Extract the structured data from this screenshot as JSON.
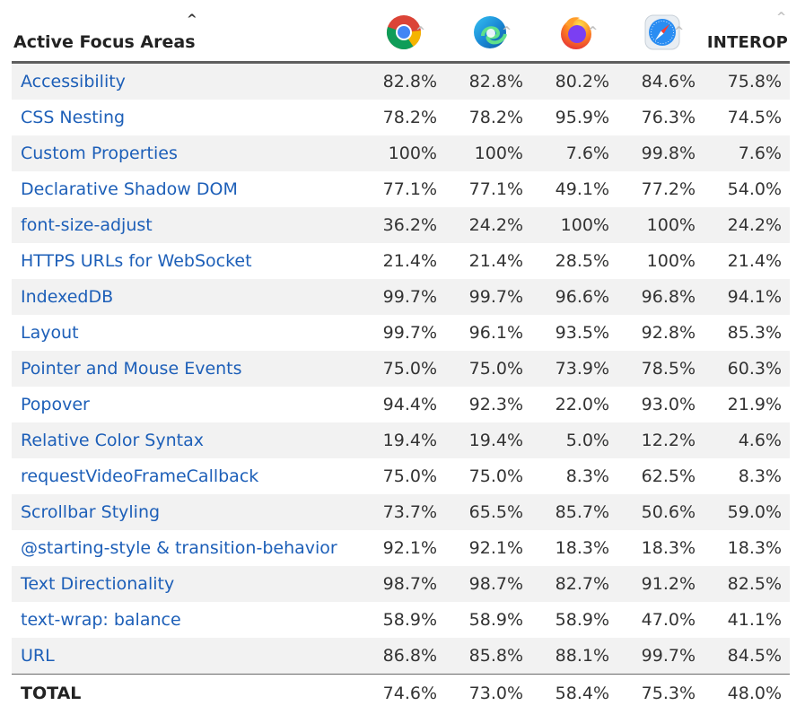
{
  "header": {
    "title": "Active Focus Areas",
    "sort_caret": "^",
    "browsers": [
      {
        "icon": "chrome-icon",
        "label": ""
      },
      {
        "icon": "edge-icon",
        "label": ""
      },
      {
        "icon": "firefox-icon",
        "label": ""
      },
      {
        "icon": "safari-icon",
        "label": ""
      },
      {
        "icon": "",
        "label": "INTEROP"
      }
    ]
  },
  "rows": [
    {
      "name": "Accessibility",
      "values": [
        "82.8%",
        "82.8%",
        "80.2%",
        "84.6%",
        "75.8%"
      ]
    },
    {
      "name": "CSS Nesting",
      "values": [
        "78.2%",
        "78.2%",
        "95.9%",
        "76.3%",
        "74.5%"
      ]
    },
    {
      "name": "Custom Properties",
      "values": [
        "100%",
        "100%",
        "7.6%",
        "99.8%",
        "7.6%"
      ]
    },
    {
      "name": "Declarative Shadow DOM",
      "values": [
        "77.1%",
        "77.1%",
        "49.1%",
        "77.2%",
        "54.0%"
      ]
    },
    {
      "name": "font-size-adjust",
      "values": [
        "36.2%",
        "24.2%",
        "100%",
        "100%",
        "24.2%"
      ]
    },
    {
      "name": "HTTPS URLs for WebSocket",
      "values": [
        "21.4%",
        "21.4%",
        "28.5%",
        "100%",
        "21.4%"
      ]
    },
    {
      "name": "IndexedDB",
      "values": [
        "99.7%",
        "99.7%",
        "96.6%",
        "96.8%",
        "94.1%"
      ]
    },
    {
      "name": "Layout",
      "values": [
        "99.7%",
        "96.1%",
        "93.5%",
        "92.8%",
        "85.3%"
      ]
    },
    {
      "name": "Pointer and Mouse Events",
      "values": [
        "75.0%",
        "75.0%",
        "73.9%",
        "78.5%",
        "60.3%"
      ]
    },
    {
      "name": "Popover",
      "values": [
        "94.4%",
        "92.3%",
        "22.0%",
        "93.0%",
        "21.9%"
      ]
    },
    {
      "name": "Relative Color Syntax",
      "values": [
        "19.4%",
        "19.4%",
        "5.0%",
        "12.2%",
        "4.6%"
      ]
    },
    {
      "name": "requestVideoFrameCallback",
      "values": [
        "75.0%",
        "75.0%",
        "8.3%",
        "62.5%",
        "8.3%"
      ]
    },
    {
      "name": "Scrollbar Styling",
      "values": [
        "73.7%",
        "65.5%",
        "85.7%",
        "50.6%",
        "59.0%"
      ]
    },
    {
      "name": "@starting-style & transition-behavior",
      "values": [
        "92.1%",
        "92.1%",
        "18.3%",
        "18.3%",
        "18.3%"
      ]
    },
    {
      "name": "Text Directionality",
      "values": [
        "98.7%",
        "98.7%",
        "82.7%",
        "91.2%",
        "82.5%"
      ]
    },
    {
      "name": "text-wrap: balance",
      "values": [
        "58.9%",
        "58.9%",
        "58.9%",
        "47.0%",
        "41.1%"
      ]
    },
    {
      "name": "URL",
      "values": [
        "86.8%",
        "85.8%",
        "88.1%",
        "99.7%",
        "84.5%"
      ]
    }
  ],
  "total": {
    "name": "TOTAL",
    "values": [
      "74.6%",
      "73.0%",
      "58.4%",
      "75.3%",
      "48.0%"
    ]
  },
  "colors": {
    "link": "#1d5fb8",
    "stripe": "#f2f2f2",
    "rule": "#5f5f5f"
  }
}
